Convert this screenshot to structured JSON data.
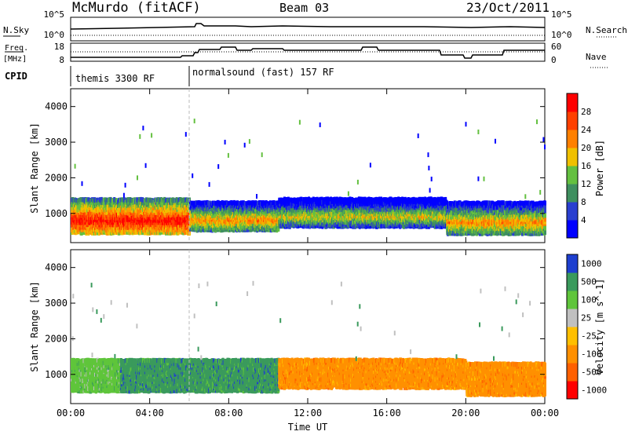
{
  "header": {
    "station": "McMurdo (fitACF)",
    "beam": "Beam 03",
    "date": "23/Oct/2011"
  },
  "panels": {
    "nsky_label": "N.Sky",
    "nsky_ticks": [
      "10^5",
      "10^0"
    ],
    "nsearch_label": "N.Search",
    "freq_label": "Freq.",
    "freq_unit": "[MHz]",
    "freq_ticks": [
      "18",
      "8"
    ],
    "nave_label": "Nave",
    "nave_ticks": [
      "60",
      "0"
    ],
    "cpid_label": "CPID",
    "cpid_segments": [
      "themis 3300 RF",
      "normalsound (fast) 157 RF"
    ]
  },
  "colors": {
    "power": [
      "#0000ff",
      "#2a3fd0",
      "#3f8f5f",
      "#64c040",
      "#f0c000",
      "#ff8000",
      "#ff4000",
      "#ff0000"
    ],
    "velocity": [
      "#ff0000",
      "#ff6000",
      "#ff9000",
      "#ffbf00",
      "#c0c0c0",
      "#5fc53b",
      "#3a9a5c",
      "#1e3fcf"
    ]
  },
  "chart_data": [
    {
      "type": "heatmap",
      "title": "Power",
      "ylabel": "Slant Range [km]",
      "xlabel": "",
      "ylim": [
        180,
        4500
      ],
      "y_ticks": [
        "1000",
        "2000",
        "3000",
        "4000"
      ],
      "x_ticks": [
        "00:00",
        "04:00",
        "08:00",
        "12:00",
        "16:00",
        "20:00",
        "00:00"
      ],
      "colorbar": {
        "label": "Power [dB]",
        "ticks": [
          "28",
          "24",
          "20",
          "16",
          "12",
          "8",
          "4"
        ]
      },
      "data": [
        {
          "t": [
            0.0,
            6.0
          ],
          "range_km": [
            420,
            1400
          ],
          "level_db": 26
        },
        {
          "t": [
            6.0,
            10.5
          ],
          "range_km": [
            500,
            1300
          ],
          "level_db": 18
        },
        {
          "t": [
            10.5,
            19.0
          ],
          "range_km": [
            600,
            1400
          ],
          "level_db": 16
        },
        {
          "t": [
            19.0,
            24.0
          ],
          "range_km": [
            400,
            1300
          ],
          "level_db": 20
        }
      ]
    },
    {
      "type": "heatmap",
      "title": "Velocity",
      "ylabel": "Slant Range [km]",
      "xlabel": "Time UT",
      "ylim": [
        180,
        4500
      ],
      "y_ticks": [
        "1000",
        "2000",
        "3000",
        "4000"
      ],
      "x_ticks": [
        "00:00",
        "04:00",
        "08:00",
        "12:00",
        "16:00",
        "20:00",
        "00:00"
      ],
      "colorbar": {
        "label": "Velocity [m s^-1]",
        "ticks": [
          "1000",
          "500",
          "100",
          "25",
          "-25",
          "-100",
          "-500",
          "-1000"
        ]
      },
      "data": [
        {
          "t": [
            0.0,
            2.5
          ],
          "range_km": [
            500,
            1400
          ],
          "velocity_ms": 50
        },
        {
          "t": [
            2.5,
            10.5
          ],
          "range_km": [
            500,
            1400
          ],
          "velocity_ms": 200
        },
        {
          "t": [
            10.5,
            20.0
          ],
          "range_km": [
            600,
            1400
          ],
          "velocity_ms": -150
        },
        {
          "t": [
            20.0,
            24.0
          ],
          "range_km": [
            400,
            1300
          ],
          "velocity_ms": -200
        }
      ]
    }
  ]
}
